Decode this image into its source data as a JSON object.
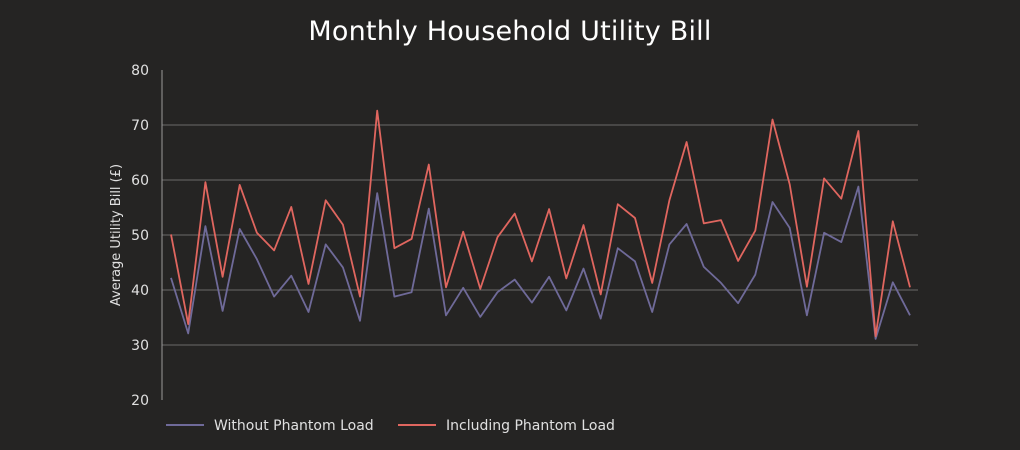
{
  "chart_data": {
    "type": "line",
    "title": "Monthly Household Utility Bill",
    "ylabel": "Average Utility Bill (£)",
    "xlabel": "",
    "ylim": [
      20,
      80
    ],
    "yticks": [
      20,
      30,
      40,
      50,
      60,
      70,
      80
    ],
    "grid": true,
    "legend_placement": "bottom-left",
    "x": [
      1,
      2,
      3,
      4,
      5,
      6,
      7,
      8,
      9,
      10,
      11,
      12,
      13,
      14,
      15,
      16,
      17,
      18,
      19,
      20,
      21,
      22,
      23,
      24,
      25,
      26,
      27,
      28,
      29,
      30,
      31,
      32,
      33,
      34,
      35,
      36,
      37,
      38,
      39,
      40,
      41,
      42,
      43,
      44
    ],
    "series": [
      {
        "name": "Without Phantom Load",
        "color": "#6f6a99",
        "values": [
          42.2,
          32.1,
          51.6,
          36.2,
          51.1,
          45.6,
          38.8,
          42.6,
          36.0,
          48.3,
          44.1,
          34.4,
          57.6,
          38.8,
          39.6,
          54.8,
          35.4,
          40.4,
          35.1,
          39.6,
          41.9,
          37.7,
          42.4,
          36.3,
          43.9,
          34.8,
          47.6,
          45.2,
          36.0,
          48.3,
          52.0,
          44.2,
          41.3,
          37.6,
          42.8,
          56.0,
          51.3,
          35.4,
          50.4,
          48.7,
          58.8,
          31.1,
          41.4,
          35.4
        ]
      },
      {
        "name": "Including Phantom Load",
        "color": "#e0665f",
        "values": [
          50.1,
          33.8,
          59.6,
          42.4,
          59.1,
          50.4,
          47.2,
          55.1,
          41.1,
          56.3,
          51.9,
          38.8,
          72.6,
          47.6,
          49.3,
          62.8,
          40.5,
          50.6,
          40.2,
          49.6,
          53.9,
          45.2,
          54.7,
          42.1,
          51.8,
          39.2,
          55.6,
          53.1,
          41.3,
          56.3,
          66.9,
          52.1,
          52.7,
          45.3,
          50.8,
          71.0,
          59.2,
          40.6,
          60.3,
          56.6,
          68.9,
          31.6,
          52.5,
          40.5
        ]
      }
    ]
  }
}
